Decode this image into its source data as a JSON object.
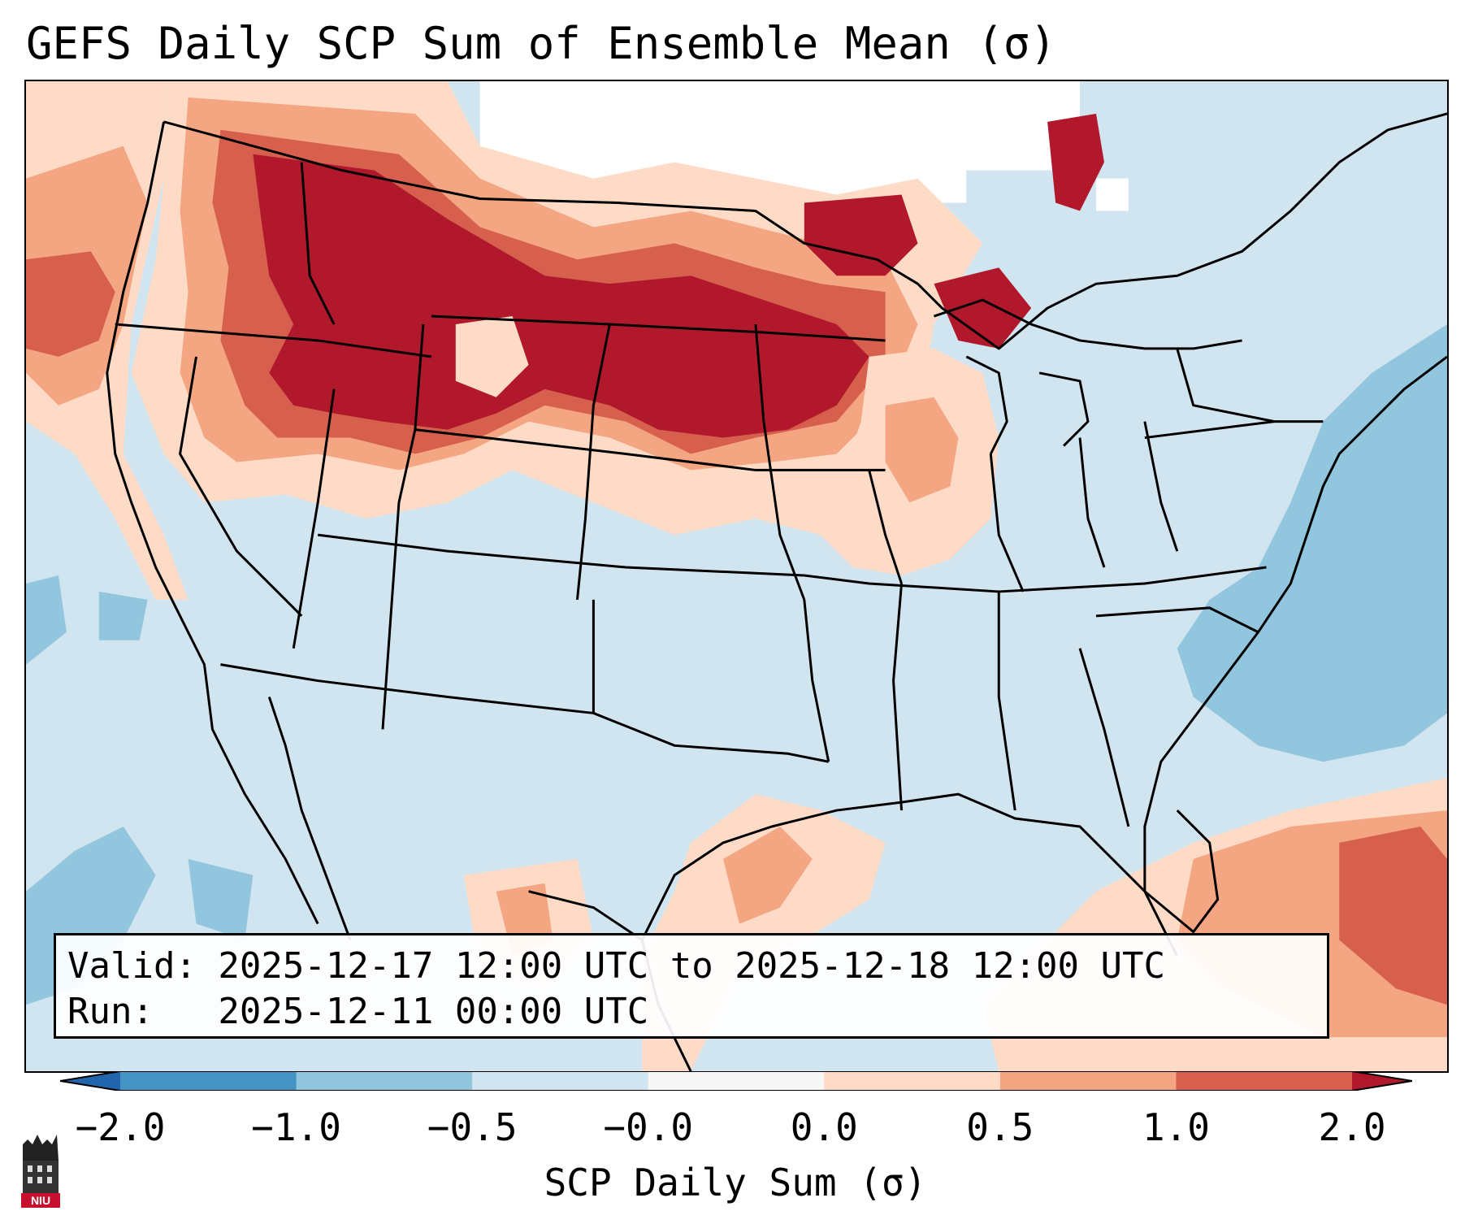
{
  "title": "GEFS Daily SCP Sum of Ensemble Mean (σ)",
  "info": {
    "valid_line": "Valid: 2025-12-17 12:00 UTC to 2025-12-18 12:00 UTC",
    "run_line": "Run:   2025-12-11 00:00 UTC"
  },
  "colorbar": {
    "label": "SCP Daily Sum (σ)",
    "ticks": [
      "−2.0",
      "−1.0",
      "−0.5",
      "−0.0",
      "0.0",
      "0.5",
      "1.0",
      "2.0"
    ],
    "bins": [
      {
        "range": "< -2.0",
        "color": "#2166ac"
      },
      {
        "range": "-2.0 to -1.0",
        "color": "#4393c3"
      },
      {
        "range": "-1.0 to -0.5",
        "color": "#92c5de"
      },
      {
        "range": "-0.5 to -0.0",
        "color": "#d1e5f0"
      },
      {
        "range": "-0.0 to 0.0",
        "color": "#f7f7f7"
      },
      {
        "range": "0.0 to 0.5",
        "color": "#fddbc7"
      },
      {
        "range": "0.5 to 1.0",
        "color": "#f4a582"
      },
      {
        "range": "1.0 to 2.0",
        "color": "#d6604d"
      },
      {
        "range": "> 2.0",
        "color": "#b2182b"
      }
    ]
  },
  "logo": {
    "text": "NIU"
  },
  "colors": {
    "neg_strong": "#4393c3",
    "neg_mid": "#92c5de",
    "neg_weak": "#d1e5f0",
    "neutral": "#ffffff",
    "pos_weak": "#fddbc7",
    "pos_mid": "#f4a582",
    "pos_strong": "#d6604d",
    "pos_extreme": "#b2182b",
    "borders": "#000000"
  }
}
